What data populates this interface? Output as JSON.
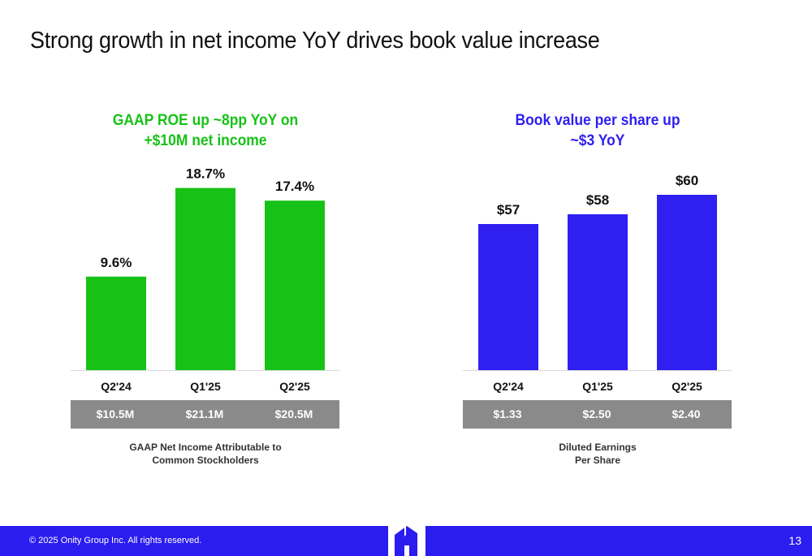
{
  "slide_title": "Strong growth in net income YoY drives book value increase",
  "colors": {
    "green": "#17c217",
    "blue": "#2f1ff0",
    "gray": "#8a8a8a",
    "footer": "#2b1cf0"
  },
  "chart_data": [
    {
      "type": "bar",
      "title_lines": [
        "GAAP ROE up ~8pp YoY on",
        "+$10M net income"
      ],
      "categories": [
        "Q2'24",
        "Q1'25",
        "Q2'25"
      ],
      "values": [
        9.6,
        18.7,
        17.4
      ],
      "labels": [
        "9.6%",
        "18.7%",
        "17.4%"
      ],
      "ylim": [
        0,
        20
      ],
      "grid": false,
      "sub_values": [
        "$10.5M",
        "$21.1M",
        "$20.5M"
      ],
      "caption_lines": [
        "GAAP Net Income Attributable to",
        "Common Stockholders"
      ]
    },
    {
      "type": "bar",
      "title_lines": [
        "Book value per share up",
        "~$3 YoY"
      ],
      "categories": [
        "Q2'24",
        "Q1'25",
        "Q2'25"
      ],
      "values": [
        57,
        58,
        60
      ],
      "labels": [
        "$57",
        "$58",
        "$60"
      ],
      "ylim": [
        42,
        62
      ],
      "grid": false,
      "sub_values": [
        "$1.33",
        "$2.50",
        "$2.40"
      ],
      "caption_lines": [
        "Diluted Earnings",
        "Per Share"
      ]
    }
  ],
  "footer": {
    "copyright": "© 2025 Onity Group Inc. All rights reserved.",
    "page_number": "13"
  },
  "logo": {
    "icon": "onity-house-logo"
  }
}
